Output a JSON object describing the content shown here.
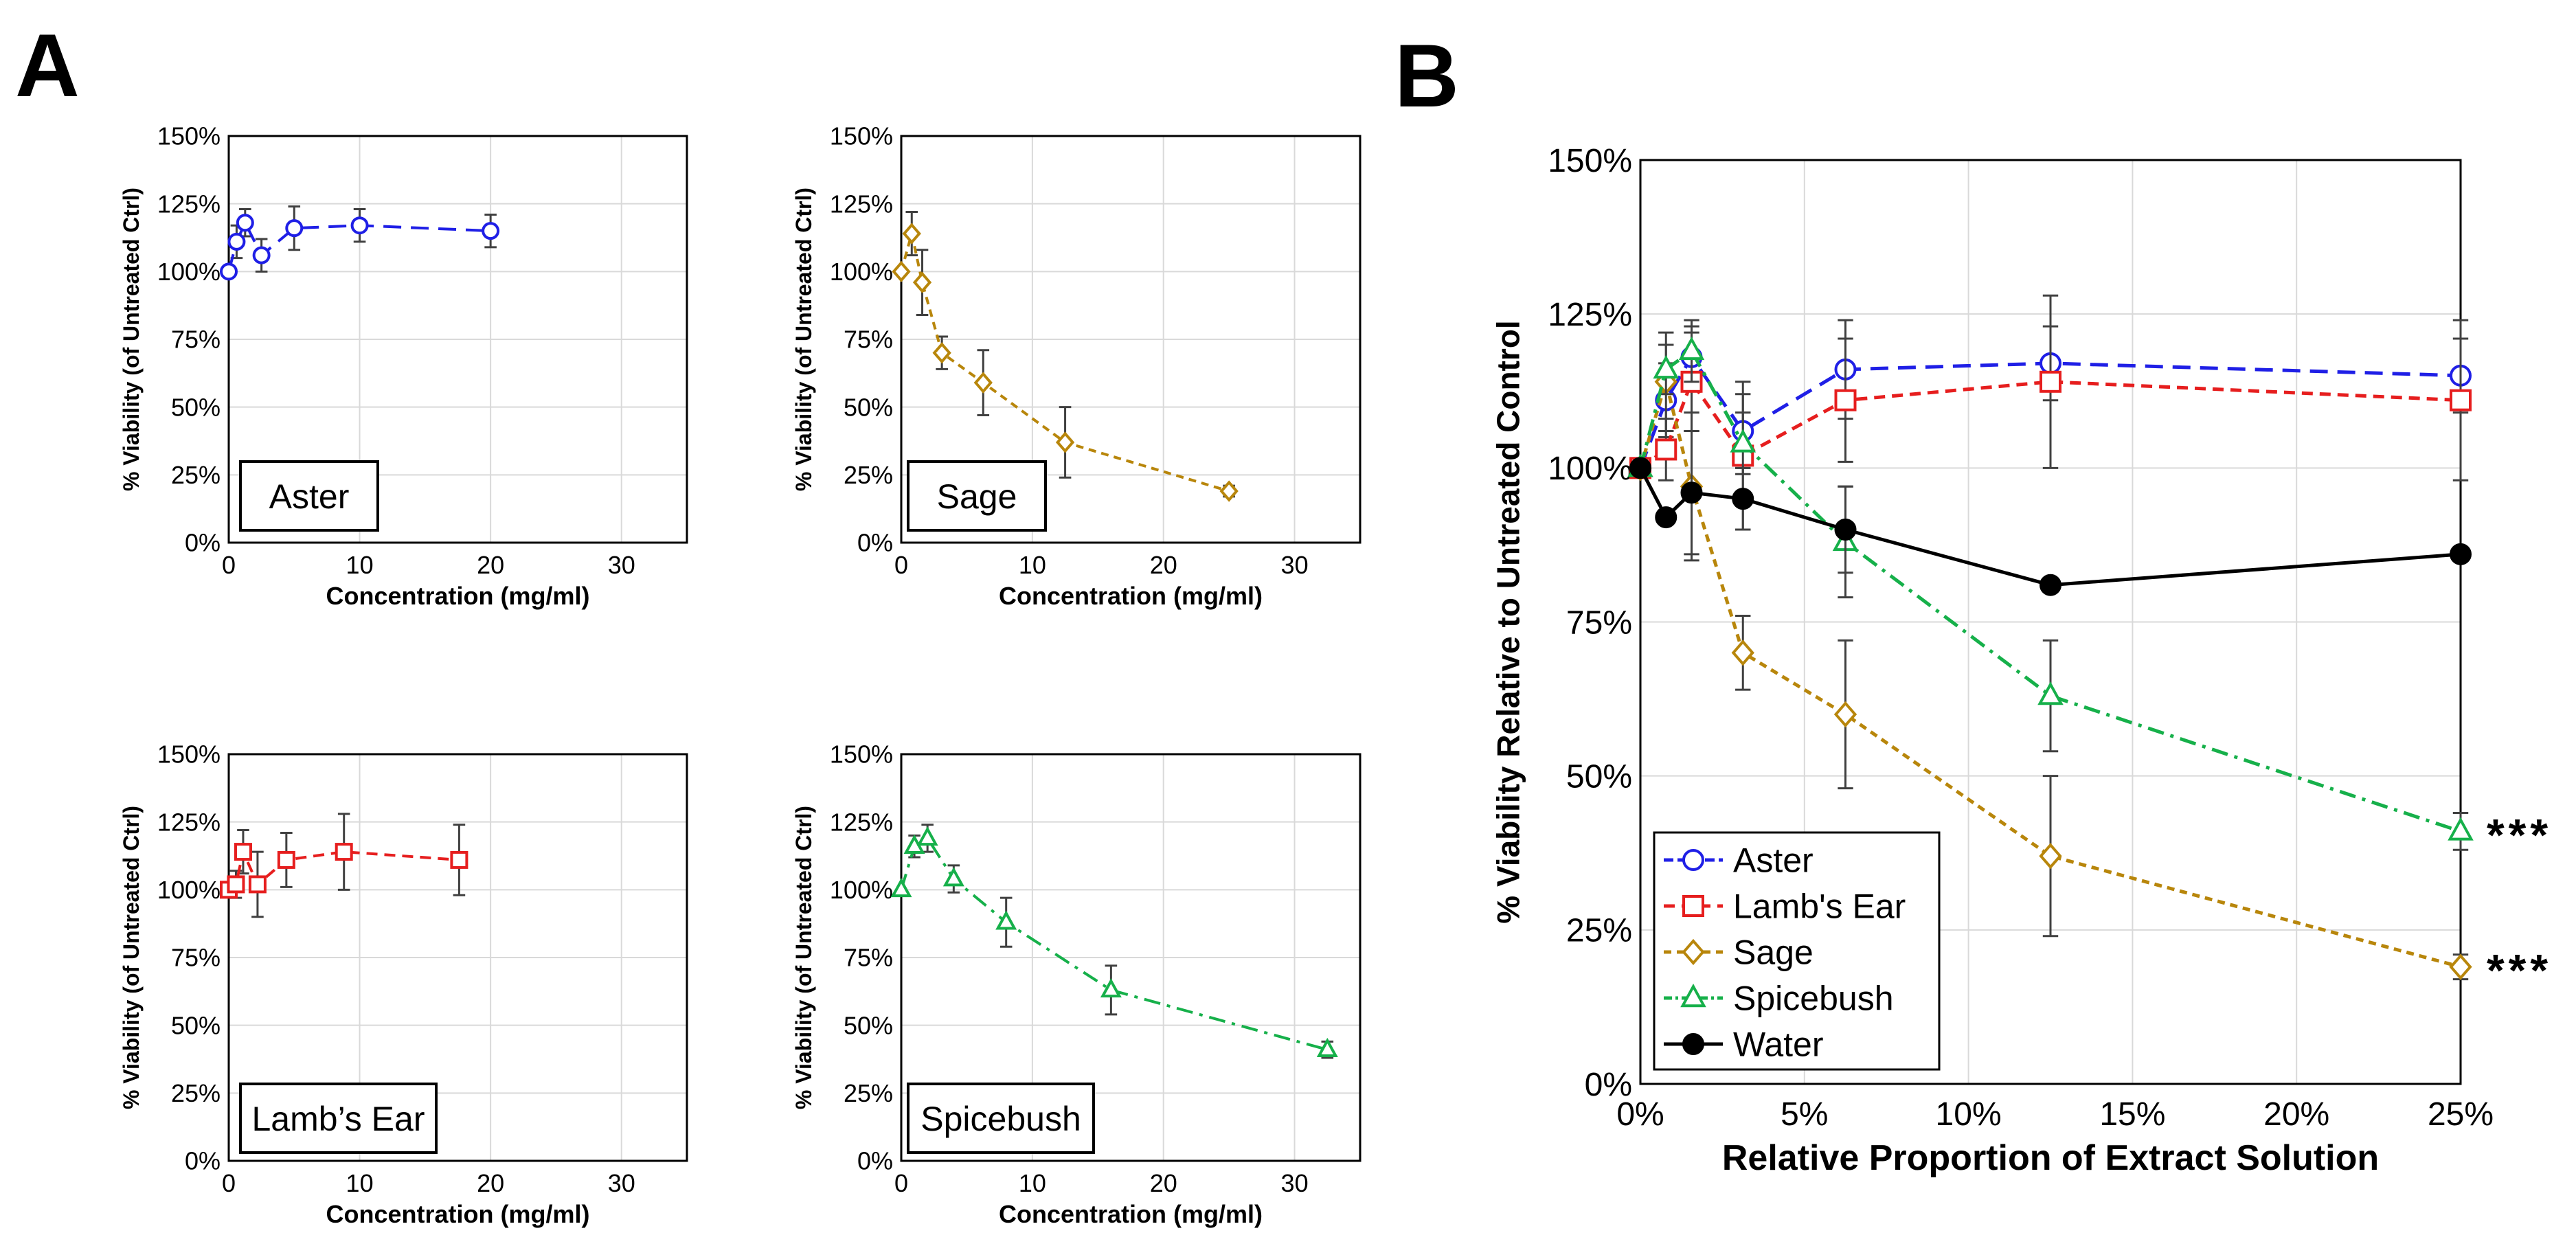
{
  "panel_labels": {
    "a": "A",
    "b": "B"
  },
  "significance_marker": "***",
  "colors": {
    "aster": "#1f1fe6",
    "lambs_ear": "#e61e1e",
    "sage": "#b8860b",
    "spicebush": "#16b04a",
    "water": "#000000",
    "grid": "#d9d9d9",
    "error_bar": "#404040"
  },
  "chart_data": [
    {
      "id": "aster",
      "type": "line",
      "panel": "A",
      "label": "Aster",
      "xlabel": "Concentration (mg/ml)",
      "ylabel": "% Viability (of Untreated Ctrl)",
      "xlim": [
        0,
        35
      ],
      "ylim": [
        0,
        150
      ],
      "xticks": [
        0,
        10,
        20,
        30
      ],
      "yticks": [
        0,
        25,
        50,
        75,
        100,
        125,
        150
      ],
      "ytick_suffix": "%",
      "grid": true,
      "series": [
        {
          "name": "Aster",
          "color": "#1f1fe6",
          "marker": "circle",
          "dash": "long",
          "x": [
            0,
            0.6,
            1.25,
            2.5,
            5,
            10,
            20
          ],
          "y": [
            100,
            111,
            118,
            106,
            116,
            117,
            115
          ],
          "err": [
            0,
            6,
            5,
            6,
            8,
            6,
            6
          ]
        }
      ]
    },
    {
      "id": "sage",
      "type": "line",
      "panel": "A",
      "label": "Sage",
      "xlabel": "Concentration (mg/ml)",
      "ylabel": "% Viability (of Untreated Ctrl)",
      "xlim": [
        0,
        35
      ],
      "ylim": [
        0,
        150
      ],
      "xticks": [
        0,
        10,
        20,
        30
      ],
      "yticks": [
        0,
        25,
        50,
        75,
        100,
        125,
        150
      ],
      "ytick_suffix": "%",
      "grid": true,
      "series": [
        {
          "name": "Sage",
          "color": "#b8860b",
          "marker": "diamond",
          "dash": "short",
          "x": [
            0,
            0.8,
            1.6,
            3.1,
            6.25,
            12.5,
            25
          ],
          "y": [
            100,
            114,
            96,
            70,
            59,
            37,
            19
          ],
          "err": [
            0,
            8,
            12,
            6,
            12,
            13,
            2
          ]
        }
      ]
    },
    {
      "id": "lambs_ear",
      "type": "line",
      "panel": "A",
      "label": "Lamb’s Ear",
      "xlabel": "Concentration (mg/ml)",
      "ylabel": "% Viability (of Untreated Ctrl)",
      "xlim": [
        0,
        35
      ],
      "ylim": [
        0,
        150
      ],
      "xticks": [
        0,
        10,
        20,
        30
      ],
      "yticks": [
        0,
        25,
        50,
        75,
        100,
        125,
        150
      ],
      "ytick_suffix": "%",
      "grid": true,
      "series": [
        {
          "name": "Lamb's Ear",
          "color": "#e61e1e",
          "marker": "square",
          "dash": "medium",
          "x": [
            0,
            0.55,
            1.1,
            2.2,
            4.4,
            8.8,
            17.6
          ],
          "y": [
            100,
            102,
            114,
            102,
            111,
            114,
            111
          ],
          "err": [
            0,
            5,
            8,
            12,
            10,
            14,
            13
          ]
        }
      ]
    },
    {
      "id": "spicebush",
      "type": "line",
      "panel": "A",
      "label": "Spicebush",
      "xlabel": "Concentration (mg/ml)",
      "ylabel": "% Viability (of Untreated Ctrl)",
      "xlim": [
        0,
        35
      ],
      "ylim": [
        0,
        150
      ],
      "xticks": [
        0,
        10,
        20,
        30
      ],
      "yticks": [
        0,
        25,
        50,
        75,
        100,
        125,
        150
      ],
      "ytick_suffix": "%",
      "grid": true,
      "series": [
        {
          "name": "Spicebush",
          "color": "#16b04a",
          "marker": "triangle",
          "dash": "dashdot",
          "x": [
            0,
            1,
            2,
            4,
            8,
            16,
            32.5
          ],
          "y": [
            100,
            116,
            119,
            104,
            88,
            63,
            41
          ],
          "err": [
            0,
            4,
            5,
            5,
            9,
            9,
            3
          ]
        }
      ]
    },
    {
      "id": "combined",
      "type": "line",
      "panel": "B",
      "xlabel": "Relative Proportion of Extract Solution",
      "ylabel": "% Viability Relative to Untreated Control",
      "xlim": [
        0,
        25
      ],
      "ylim": [
        0,
        150
      ],
      "xticks": [
        0,
        5,
        10,
        15,
        20,
        25
      ],
      "yticks": [
        0,
        25,
        50,
        75,
        100,
        125,
        150
      ],
      "xtick_suffix": "%",
      "ytick_suffix": "%",
      "grid": true,
      "legend": "bottom-left",
      "significance": [
        {
          "series": "Spicebush",
          "text": "***"
        },
        {
          "series": "Sage",
          "text": "***"
        }
      ],
      "series": [
        {
          "name": "Aster",
          "color": "#1f1fe6",
          "marker": "circle",
          "dash": "long",
          "x": [
            0,
            0.78,
            1.56,
            3.125,
            6.25,
            12.5,
            25
          ],
          "y": [
            100,
            111,
            118,
            106,
            116,
            117,
            115
          ],
          "err": [
            0,
            6,
            5,
            6,
            8,
            6,
            6
          ]
        },
        {
          "name": "Lamb's Ear",
          "color": "#e61e1e",
          "marker": "square",
          "dash": "medium",
          "x": [
            0,
            0.78,
            1.56,
            3.125,
            6.25,
            12.5,
            25
          ],
          "y": [
            100,
            103,
            114,
            102,
            111,
            114,
            111
          ],
          "err": [
            0,
            5,
            8,
            12,
            10,
            14,
            13
          ]
        },
        {
          "name": "Sage",
          "color": "#b8860b",
          "marker": "diamond",
          "dash": "short",
          "x": [
            0,
            0.78,
            1.56,
            3.125,
            6.25,
            12.5,
            25
          ],
          "y": [
            100,
            114,
            97,
            70,
            60,
            37,
            19
          ],
          "err": [
            0,
            8,
            12,
            6,
            12,
            13,
            2
          ]
        },
        {
          "name": "Spicebush",
          "color": "#16b04a",
          "marker": "triangle",
          "dash": "dashdot",
          "x": [
            0,
            0.78,
            1.56,
            3.125,
            6.25,
            12.5,
            25
          ],
          "y": [
            100,
            116,
            119,
            104,
            88,
            63,
            41
          ],
          "err": [
            0,
            4,
            5,
            5,
            9,
            9,
            3
          ]
        },
        {
          "name": "Water",
          "color": "#000000",
          "marker": "filled-circle",
          "dash": "solid",
          "x": [
            0,
            0.78,
            1.56,
            3.125,
            6.25,
            12.5,
            25
          ],
          "y": [
            100,
            92,
            96,
            95,
            90,
            81,
            86
          ],
          "err": [
            0,
            0,
            10,
            5,
            7,
            0,
            0
          ]
        }
      ]
    }
  ]
}
